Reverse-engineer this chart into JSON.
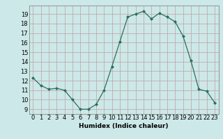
{
  "x": [
    0,
    1,
    2,
    3,
    4,
    5,
    6,
    7,
    8,
    9,
    10,
    11,
    12,
    13,
    14,
    15,
    16,
    17,
    18,
    19,
    20,
    21,
    22,
    23
  ],
  "y": [
    12.3,
    11.5,
    11.1,
    11.2,
    11.0,
    10.0,
    9.0,
    9.0,
    9.5,
    11.0,
    13.5,
    16.1,
    18.7,
    19.0,
    19.3,
    18.5,
    19.1,
    18.7,
    18.2,
    16.7,
    14.1,
    11.1,
    10.9,
    9.7
  ],
  "line_color": "#2d6e5e",
  "marker": "D",
  "marker_size": 2.0,
  "bg_color": "#cce8e8",
  "grid_color": "#c0a0a0",
  "xlabel": "Humidex (Indice chaleur)",
  "xlim": [
    -0.5,
    23.5
  ],
  "ylim": [
    8.5,
    19.9
  ],
  "yticks": [
    9,
    10,
    11,
    12,
    13,
    14,
    15,
    16,
    17,
    18,
    19
  ],
  "xticks": [
    0,
    1,
    2,
    3,
    4,
    5,
    6,
    7,
    8,
    9,
    10,
    11,
    12,
    13,
    14,
    15,
    16,
    17,
    18,
    19,
    20,
    21,
    22,
    23
  ],
  "label_fontsize": 6.5,
  "tick_fontsize": 6.0
}
